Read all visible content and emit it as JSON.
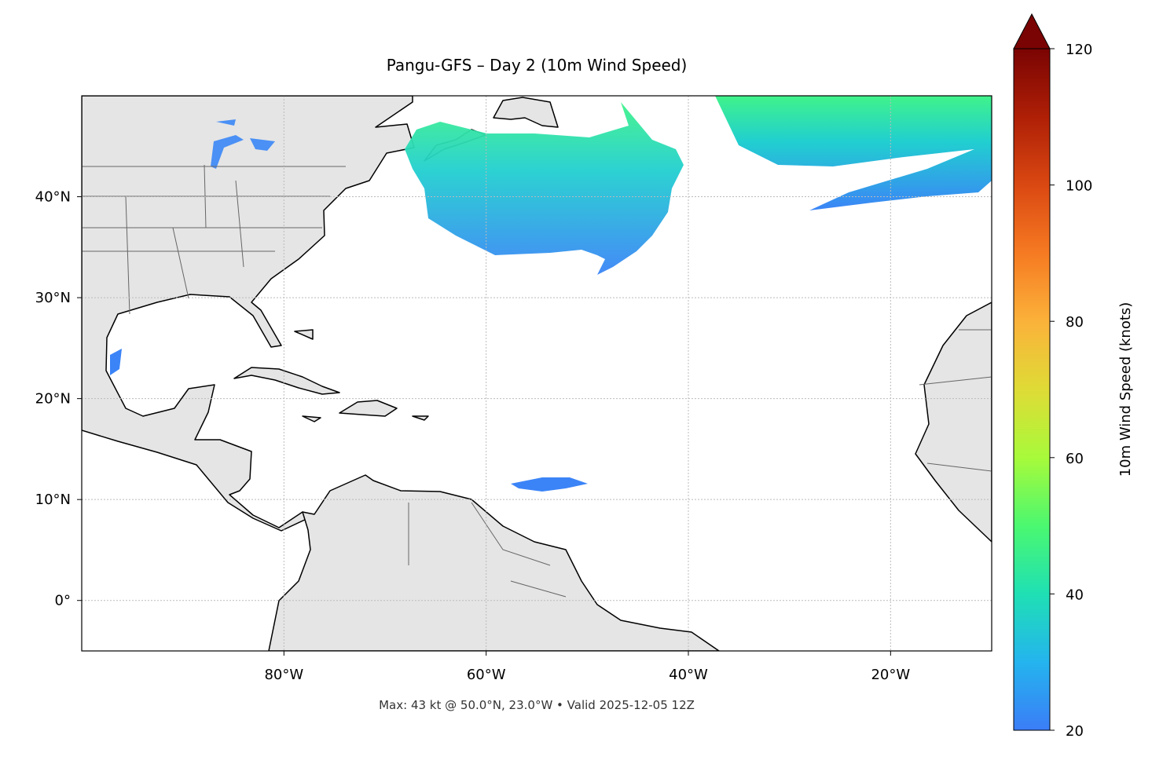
{
  "map": {
    "title": "Pangu-GFS – Day 2 (10m Wind Speed)",
    "footer": "Max: 43 kt @ 50.0°N, 23.0°W • Valid 2025-12-05 12Z",
    "xlim": [
      -100,
      -10
    ],
    "ylim": [
      -5,
      50
    ],
    "xticks": [
      {
        "value": -80,
        "label": "80°W"
      },
      {
        "value": -60,
        "label": "60°W"
      },
      {
        "value": -40,
        "label": "40°W"
      },
      {
        "value": -20,
        "label": "20°W"
      }
    ],
    "yticks": [
      {
        "value": 0,
        "label": "0°"
      },
      {
        "value": 10,
        "label": "10°N"
      },
      {
        "value": 20,
        "label": "20°N"
      },
      {
        "value": 30,
        "label": "30°N"
      },
      {
        "value": 40,
        "label": "40°N"
      }
    ],
    "grid": true,
    "colorbar": {
      "label": "10m Wind Speed (knots)",
      "lim": [
        20,
        120
      ],
      "ticks": [
        20,
        40,
        60,
        80,
        100,
        120
      ]
    }
  }
}
